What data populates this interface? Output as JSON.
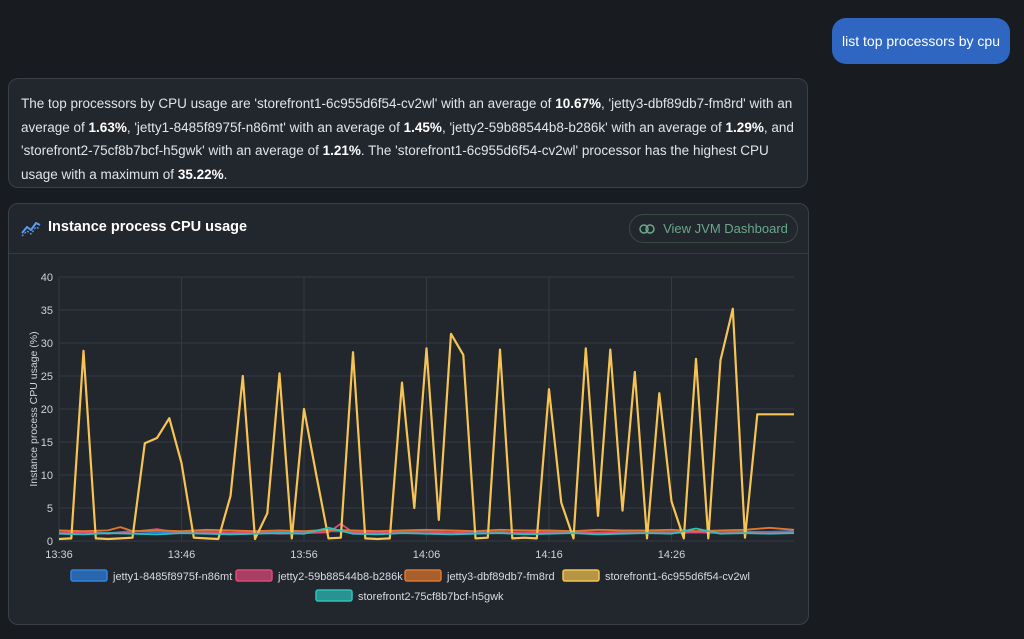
{
  "user_message": "list top processors by cpu",
  "answer": [
    {
      "t": "The top processors by CPU usage are 'storefront1-6c955d6f54-cv2wl' with an average of ",
      "b": false
    },
    {
      "t": "10.67%",
      "b": true
    },
    {
      "t": ", 'jetty3-dbf89db7-fm8rd' with an average of ",
      "b": false
    },
    {
      "t": "1.63%",
      "b": true
    },
    {
      "t": ", 'jetty1-8485f8975f-n86mt' with an average of ",
      "b": false
    },
    {
      "t": "1.45%",
      "b": true
    },
    {
      "t": ", 'jetty2-59b88544b8-b286k' with an average of ",
      "b": false
    },
    {
      "t": "1.29%",
      "b": true
    },
    {
      "t": ", and 'storefront2-75cf8b7bcf-h5gwk' with an average of ",
      "b": false
    },
    {
      "t": "1.21%",
      "b": true
    },
    {
      "t": ". The 'storefront1-6c955d6f54-cv2wl' processor has the highest CPU usage with a maximum of ",
      "b": false
    },
    {
      "t": "35.22%",
      "b": true
    },
    {
      "t": ".",
      "b": false
    }
  ],
  "panel": {
    "title": "Instance process CPU usage",
    "title_icon": "line-chart-icon",
    "button_label": "View JVM Dashboard",
    "button_icon": "link-icon"
  },
  "chart_data": {
    "type": "line",
    "title": "Instance process CPU usage",
    "ylabel": "Instance process CPU usage (%)",
    "xlabel": "",
    "ylim": [
      0,
      40
    ],
    "yticks": [
      0,
      5,
      10,
      15,
      20,
      25,
      30,
      35,
      40
    ],
    "xlim": [
      0,
      60
    ],
    "xticks": [
      {
        "t": 0,
        "label": "13:36"
      },
      {
        "t": 10,
        "label": "13:46"
      },
      {
        "t": 20,
        "label": "13:56"
      },
      {
        "t": 30,
        "label": "14:06"
      },
      {
        "t": 40,
        "label": "14:16"
      },
      {
        "t": 50,
        "label": "14:26"
      }
    ],
    "grid": true,
    "legend_position": "bottom",
    "series": [
      {
        "name": "jetty1-8485f8975f-n86mt",
        "color": "#2f82e4",
        "x": [
          0,
          2,
          4,
          6,
          8,
          10,
          12,
          14,
          16,
          18,
          20,
          22,
          24,
          26,
          28,
          30,
          32,
          34,
          36,
          38,
          40,
          42,
          44,
          46,
          48,
          50,
          52,
          54,
          56,
          58,
          60
        ],
        "values": [
          1.3,
          1.4,
          1.2,
          1.5,
          1.3,
          1.4,
          1.5,
          1.3,
          1.4,
          1.4,
          1.3,
          1.5,
          1.4,
          1.3,
          1.4,
          1.5,
          1.3,
          1.4,
          1.4,
          1.3,
          1.5,
          1.4,
          1.3,
          1.4,
          1.5,
          1.4,
          1.3,
          1.5,
          1.4,
          1.4,
          1.5
        ]
      },
      {
        "name": "jetty2-59b88544b8-b286k",
        "color": "#e0497a",
        "x": [
          0,
          2,
          4,
          6,
          8,
          10,
          12,
          14,
          16,
          18,
          20,
          22,
          23,
          24,
          26,
          28,
          30,
          32,
          34,
          36,
          38,
          40,
          42,
          44,
          46,
          48,
          50,
          52,
          54,
          56,
          58,
          60
        ],
        "values": [
          1.2,
          1.3,
          1.1,
          1.4,
          1.8,
          1.2,
          1.3,
          1.2,
          1.3,
          1.1,
          1.2,
          1.3,
          2.6,
          1.3,
          1.2,
          1.3,
          1.2,
          1.3,
          1.1,
          1.3,
          1.2,
          1.3,
          1.2,
          1.3,
          1.2,
          1.3,
          1.2,
          1.3,
          1.2,
          1.3,
          1.2,
          1.3
        ]
      },
      {
        "name": "jetty3-dbf89db7-fm8rd",
        "color": "#e0772e",
        "x": [
          0,
          2,
          4,
          5,
          6,
          8,
          10,
          12,
          14,
          16,
          18,
          20,
          22,
          24,
          26,
          28,
          30,
          32,
          34,
          36,
          38,
          40,
          42,
          44,
          46,
          48,
          50,
          52,
          54,
          56,
          58,
          60
        ],
        "values": [
          1.6,
          1.5,
          1.6,
          2.1,
          1.5,
          1.6,
          1.5,
          1.7,
          1.6,
          1.5,
          1.6,
          1.5,
          1.7,
          1.6,
          1.5,
          1.6,
          1.7,
          1.6,
          1.5,
          1.7,
          1.6,
          1.6,
          1.5,
          1.7,
          1.6,
          1.6,
          1.7,
          1.5,
          1.6,
          1.7,
          2.0,
          1.7
        ]
      },
      {
        "name": "storefront1-6c955d6f54-cv2wl",
        "color": "#f5c453",
        "x": [
          0,
          1,
          2,
          3,
          4,
          5,
          6,
          7,
          8,
          9,
          10,
          11,
          12,
          13,
          14,
          15,
          16,
          17,
          18,
          19,
          20,
          21,
          22,
          23,
          24,
          25,
          26,
          27,
          28,
          29,
          30,
          31,
          32,
          33,
          34,
          35,
          36,
          37,
          38,
          39,
          40,
          41,
          42,
          43,
          44,
          45,
          46,
          47,
          48,
          49,
          50,
          51,
          52,
          53,
          54,
          55,
          56,
          57,
          58,
          59,
          60
        ],
        "values": [
          0.3,
          0.4,
          28.8,
          0.4,
          0.3,
          0.4,
          0.5,
          14.8,
          15.6,
          18.6,
          11.8,
          0.5,
          0.4,
          0.3,
          6.8,
          25.0,
          0.3,
          4.2,
          25.4,
          0.4,
          20.0,
          10.0,
          0.4,
          0.5,
          28.6,
          0.4,
          0.3,
          0.4,
          24.0,
          5.0,
          29.2,
          3.2,
          31.4,
          28.2,
          0.4,
          0.5,
          29.0,
          0.4,
          0.5,
          0.4,
          23.0,
          5.8,
          0.4,
          29.2,
          3.8,
          29.0,
          4.6,
          25.6,
          0.4,
          22.4,
          6.0,
          0.4,
          27.6,
          0.4,
          27.4,
          35.2,
          0.5,
          19.2,
          19.2,
          19.2,
          19.2
        ]
      },
      {
        "name": "storefront2-75cf8b7bcf-h5gwk",
        "color": "#2cc2bb",
        "x": [
          0,
          2,
          4,
          6,
          8,
          10,
          12,
          14,
          16,
          18,
          20,
          22,
          24,
          26,
          28,
          30,
          32,
          34,
          36,
          38,
          40,
          42,
          44,
          46,
          48,
          50,
          52,
          54,
          56,
          58,
          60
        ],
        "values": [
          1.1,
          1.0,
          1.2,
          1.1,
          1.0,
          1.2,
          1.1,
          1.0,
          1.1,
          1.2,
          1.1,
          2.0,
          1.1,
          1.0,
          1.2,
          1.1,
          1.0,
          1.1,
          1.2,
          1.0,
          1.1,
          1.2,
          1.0,
          1.1,
          1.2,
          1.1,
          1.9,
          1.1,
          1.2,
          1.1,
          1.2
        ]
      }
    ]
  }
}
